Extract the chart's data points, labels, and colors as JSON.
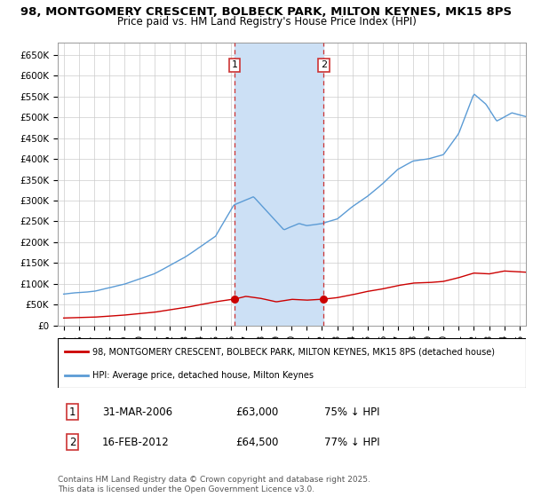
{
  "title_line1": "98, MONTGOMERY CRESCENT, BOLBECK PARK, MILTON KEYNES, MK15 8PS",
  "title_line2": "Price paid vs. HM Land Registry's House Price Index (HPI)",
  "ylim": [
    0,
    680000
  ],
  "yticks": [
    0,
    50000,
    100000,
    150000,
    200000,
    250000,
    300000,
    350000,
    400000,
    450000,
    500000,
    550000,
    600000,
    650000
  ],
  "ytick_labels": [
    "£0",
    "£50K",
    "£100K",
    "£150K",
    "£200K",
    "£250K",
    "£300K",
    "£350K",
    "£400K",
    "£450K",
    "£500K",
    "£550K",
    "£600K",
    "£650K"
  ],
  "xlim_start": 1994.6,
  "xlim_end": 2025.4,
  "sale1_x": 2006.24,
  "sale1_y": 63000,
  "sale2_x": 2012.12,
  "sale2_y": 64500,
  "sale1_label": "1",
  "sale2_label": "2",
  "shade_color": "#cce0f5",
  "hpi_line_color": "#5b9bd5",
  "price_line_color": "#cc0000",
  "vline_color": "#cc3333",
  "vline_style": "--",
  "background_color": "#ffffff",
  "grid_color": "#cccccc",
  "legend_entry1": "98, MONTGOMERY CRESCENT, BOLBECK PARK, MILTON KEYNES, MK15 8PS (detached house)",
  "legend_entry2": "HPI: Average price, detached house, Milton Keynes",
  "table_row1": [
    "1",
    "31-MAR-2006",
    "£63,000",
    "75% ↓ HPI"
  ],
  "table_row2": [
    "2",
    "16-FEB-2012",
    "£64,500",
    "77% ↓ HPI"
  ],
  "footnote": "Contains HM Land Registry data © Crown copyright and database right 2025.\nThis data is licensed under the Open Government Licence v3.0.",
  "title_fontsize": 9.5,
  "subtitle_fontsize": 8.5,
  "axis_fontsize": 7.5
}
